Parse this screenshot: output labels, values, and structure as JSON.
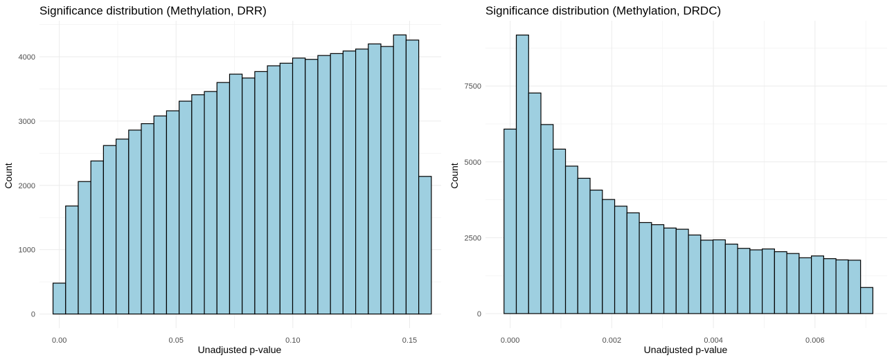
{
  "colors": {
    "fill": "#9ecfe0",
    "outline": "#000000",
    "grid": "#ebebeb"
  },
  "chart_data": [
    {
      "type": "bar",
      "title": "Significance distribution (Methylation, DRR)",
      "xlabel": "Unadjusted p-value",
      "ylabel": "Count",
      "xlim": [
        -0.0085,
        0.1635
      ],
      "ylim": [
        -220,
        4560
      ],
      "xticks": [
        0.0,
        0.05,
        0.1,
        0.15
      ],
      "xtick_labels": [
        "0.00",
        "0.05",
        "0.10",
        "0.15"
      ],
      "yticks": [
        0,
        1000,
        2000,
        3000,
        4000
      ],
      "ytick_labels": [
        "0",
        "1000",
        "2000",
        "3000",
        "4000"
      ],
      "bin_width": 0.0054,
      "bin_centers": [
        0.0,
        0.0054,
        0.0108,
        0.0162,
        0.0216,
        0.027,
        0.0324,
        0.0378,
        0.0432,
        0.0486,
        0.054,
        0.0594,
        0.0648,
        0.0702,
        0.0756,
        0.081,
        0.0864,
        0.0918,
        0.0972,
        0.1026,
        0.108,
        0.1134,
        0.1188,
        0.1242,
        0.1296,
        0.135,
        0.1404,
        0.1458,
        0.1512,
        0.1566
      ],
      "values": [
        480,
        1680,
        2060,
        2380,
        2620,
        2720,
        2860,
        2960,
        3080,
        3160,
        3310,
        3410,
        3460,
        3600,
        3730,
        3670,
        3770,
        3860,
        3900,
        3980,
        3960,
        4020,
        4050,
        4090,
        4120,
        4200,
        4160,
        4340,
        4260,
        2140
      ]
    },
    {
      "type": "bar",
      "title": "Significance distribution (Methylation, DRDC)",
      "xlabel": "Unadjusted p-value",
      "ylabel": "Count",
      "xlim": [
        -0.000486,
        0.00742
      ],
      "ylim": [
        -480,
        9650
      ],
      "xticks": [
        0.0,
        0.002,
        0.004,
        0.006
      ],
      "xtick_labels": [
        "0.000",
        "0.002",
        "0.004",
        "0.006"
      ],
      "yticks": [
        0,
        2500,
        5000,
        7500
      ],
      "ytick_labels": [
        "0",
        "2500",
        "5000",
        "7500"
      ],
      "bin_width": 0.000242,
      "bin_centers": [
        0.0,
        0.000242,
        0.000484,
        0.000726,
        0.000968,
        0.00121,
        0.001452,
        0.001694,
        0.001936,
        0.002178,
        0.00242,
        0.002662,
        0.002904,
        0.003146,
        0.003388,
        0.00363,
        0.003872,
        0.004114,
        0.004356,
        0.004598,
        0.00484,
        0.005082,
        0.005324,
        0.005566,
        0.005808,
        0.00605,
        0.006292,
        0.006534,
        0.006776,
        0.007018
      ],
      "values": [
        6080,
        9180,
        7270,
        6230,
        5420,
        4860,
        4460,
        4070,
        3760,
        3540,
        3320,
        3000,
        2930,
        2820,
        2780,
        2590,
        2420,
        2430,
        2290,
        2150,
        2100,
        2130,
        2040,
        1980,
        1840,
        1900,
        1810,
        1770,
        1760,
        860
      ]
    }
  ]
}
